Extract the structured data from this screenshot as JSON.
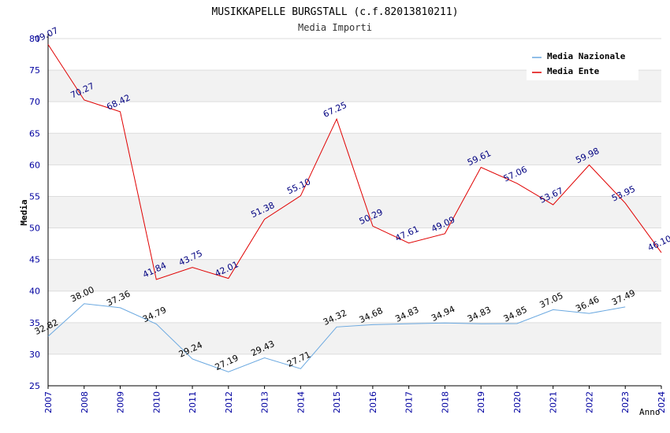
{
  "chart_data": {
    "type": "line",
    "title": "MUSIKKAPELLE BURGSTALL (c.f.82013810211)",
    "subtitle": "Media Importi",
    "xlabel": "Anno",
    "ylabel": "Media",
    "ylim": [
      25,
      80
    ],
    "yticks": [
      25,
      30,
      35,
      40,
      45,
      50,
      55,
      60,
      65,
      70,
      75,
      80
    ],
    "x": [
      2007,
      2008,
      2009,
      2010,
      2011,
      2012,
      2013,
      2014,
      2015,
      2016,
      2017,
      2018,
      2019,
      2020,
      2021,
      2022,
      2023,
      2024
    ],
    "grid": true,
    "legend_position": "top-right",
    "series": [
      {
        "name": "Media Nazionale",
        "color": "#6aa8e0",
        "label_color": "#000000",
        "x": [
          2007,
          2008,
          2009,
          2010,
          2011,
          2012,
          2013,
          2014,
          2015,
          2016,
          2017,
          2018,
          2019,
          2020,
          2021,
          2022,
          2023
        ],
        "values": [
          32.82,
          38.0,
          37.36,
          34.79,
          29.24,
          27.19,
          29.43,
          27.71,
          34.32,
          34.68,
          34.83,
          34.94,
          34.83,
          34.85,
          37.05,
          36.46,
          37.49
        ],
        "labels": [
          "32.82",
          "38.00",
          "37.36",
          "34.79",
          "29.24",
          "27.19",
          "29.43",
          "27.71",
          "34.32",
          "34.68",
          "34.83",
          "34.94",
          "34.83",
          "34.85",
          "37.05",
          "36.46",
          "37.49"
        ]
      },
      {
        "name": "Media Ente",
        "color": "#e00000",
        "label_color": "#000080",
        "x": [
          2007,
          2008,
          2009,
          2010,
          2011,
          2012,
          2013,
          2014,
          2015,
          2016,
          2017,
          2018,
          2019,
          2020,
          2021,
          2022,
          2023,
          2024
        ],
        "values": [
          79.07,
          70.27,
          68.42,
          41.84,
          43.75,
          42.01,
          51.38,
          55.1,
          67.25,
          50.29,
          47.61,
          49.09,
          59.61,
          57.06,
          53.67,
          59.98,
          53.95,
          46.1
        ],
        "labels": [
          "79.07",
          "70.27",
          "68.42",
          "41.84",
          "43.75",
          "42.01",
          "51.38",
          "55.10",
          "67.25",
          "50.29",
          "47.61",
          "49.09",
          "59.61",
          "57.06",
          "53.67",
          "59.98",
          "53.95",
          "46.10"
        ]
      }
    ]
  }
}
